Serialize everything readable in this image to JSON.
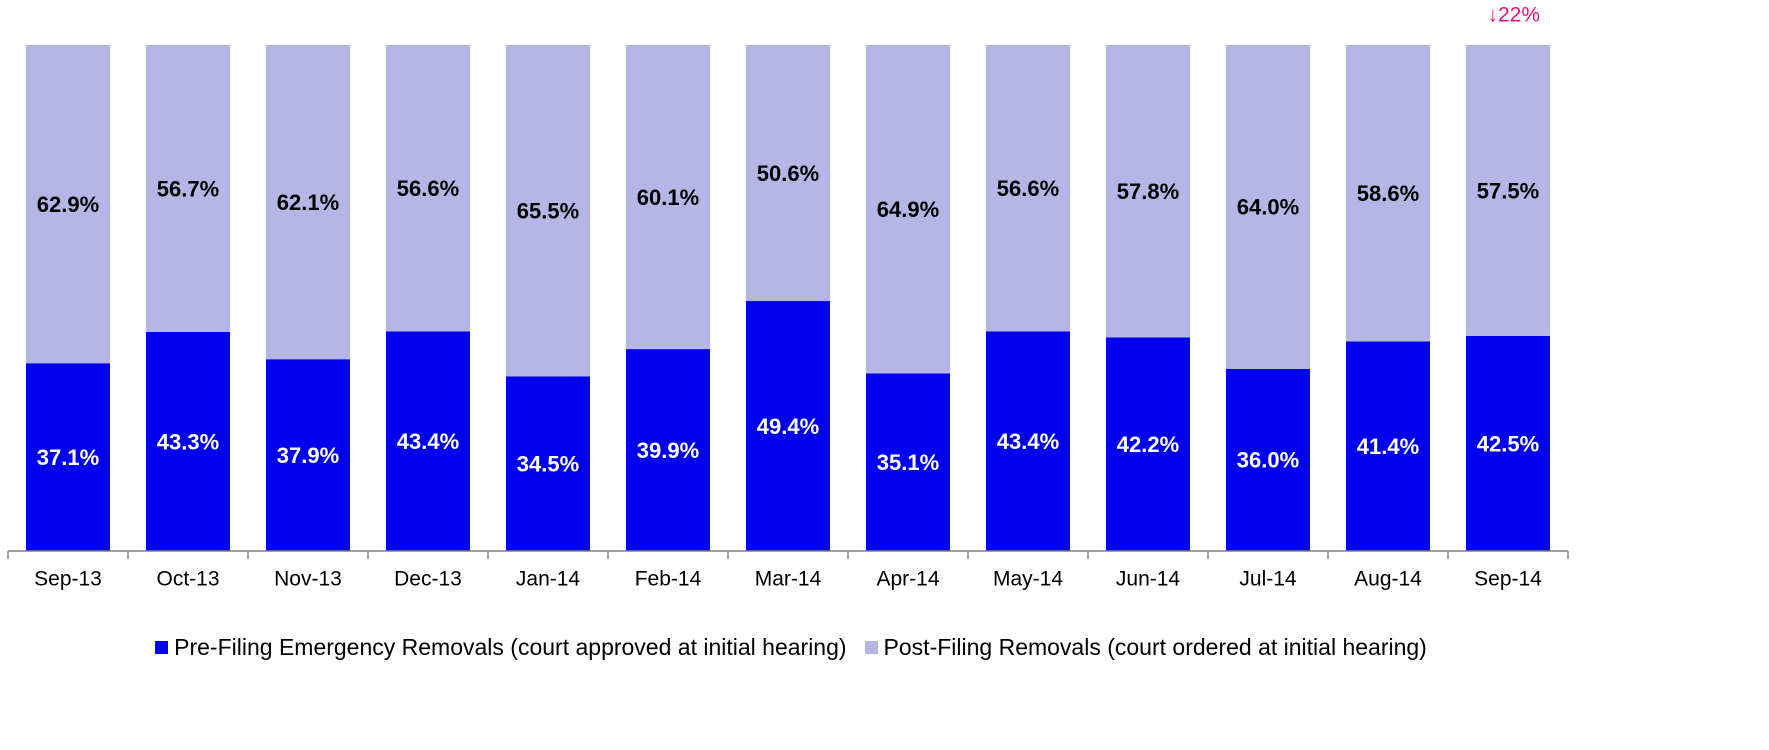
{
  "chart_data": {
    "type": "stacked_bar",
    "annotation": "↓22%",
    "categories": [
      "Sep-13",
      "Oct-13",
      "Nov-13",
      "Dec-13",
      "Jan-14",
      "Feb-14",
      "Mar-14",
      "Apr-14",
      "May-14",
      "Jun-14",
      "Jul-14",
      "Aug-14",
      "Sep-14"
    ],
    "series": [
      {
        "name": "Pre-Filing Emergency Removals (court approved at initial hearing)",
        "color": "#0000ee",
        "values": [
          37.1,
          43.3,
          37.9,
          43.4,
          34.5,
          39.9,
          49.4,
          35.1,
          43.4,
          42.2,
          36.0,
          41.4,
          42.5
        ],
        "value_labels": [
          "37.1%",
          "43.3%",
          "37.9%",
          "43.4%",
          "34.5%",
          "39.9%",
          "49.4%",
          "35.1%",
          "43.4%",
          "42.2%",
          "36.0%",
          "41.4%",
          "42.5%"
        ]
      },
      {
        "name": "Post-Filing Removals (court ordered at initial hearing)",
        "color": "#b5b5e6",
        "values": [
          62.9,
          56.7,
          62.1,
          56.6,
          65.5,
          60.1,
          50.6,
          64.9,
          56.6,
          57.8,
          64.0,
          58.6,
          57.5
        ],
        "value_labels": [
          "62.9%",
          "56.7%",
          "62.1%",
          "56.6%",
          "65.5%",
          "60.1%",
          "50.6%",
          "64.9%",
          "56.6%",
          "57.8%",
          "64.0%",
          "58.6%",
          "57.5%"
        ]
      }
    ],
    "ylim": [
      0,
      100
    ]
  }
}
